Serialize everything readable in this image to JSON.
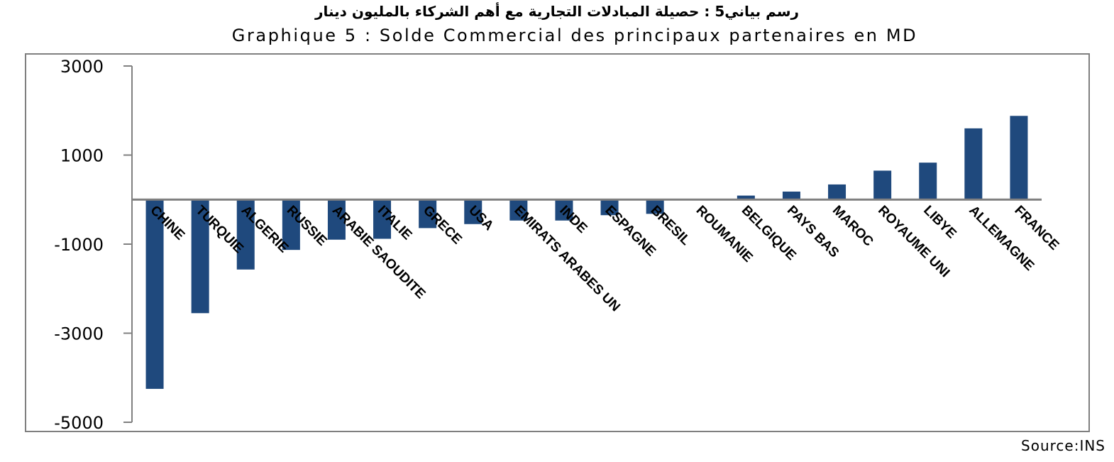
{
  "chart_data": {
    "type": "bar",
    "title_ar": "رسم بياني5 : حصيلة المبادلات التجارية مع أهم الشركاء بالمليون دينار",
    "title": "Graphique 5 : Solde Commercial des principaux partenaires en MD",
    "source": "Source:INS",
    "categories": [
      "CHINE",
      "TURQUIE",
      "ALGERIE",
      "RUSSIE",
      "ARABIE SAOUDITE",
      "ITALIE",
      "GRECE",
      "USA",
      "EMIRATS ARABES UN",
      "INDE",
      "ESPAGNE",
      "BRESIL",
      "ROUMANIE",
      "BELGIQUE",
      "PAYS BAS",
      "MAROC",
      "ROYAUME UNI",
      "LIBYE",
      "ALLEMAGNE",
      "FRANCE"
    ],
    "values": [
      -4250,
      -2550,
      -1570,
      -1130,
      -900,
      -880,
      -640,
      -550,
      -470,
      -470,
      -350,
      -320,
      -20,
      90,
      180,
      340,
      650,
      830,
      1600,
      1880
    ],
    "ylim": [
      -5000,
      3000
    ],
    "yticks": [
      3000,
      1000,
      -1000,
      -3000,
      -5000
    ],
    "grid": false,
    "colors": {
      "bar": "#1f497d",
      "axis": "#808080",
      "frame": "#7f7f7f"
    }
  }
}
